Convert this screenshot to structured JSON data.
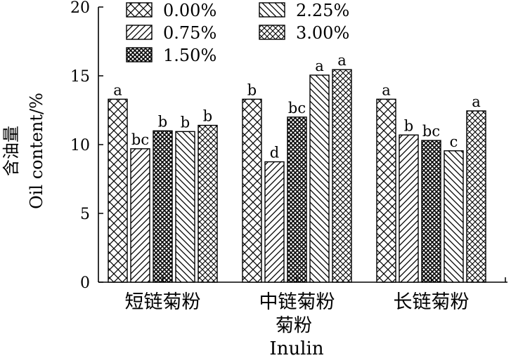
{
  "chart_data": {
    "type": "bar",
    "categories": [
      "短链菊粉",
      "中链菊粉",
      "长链菊粉"
    ],
    "xlabel_cn": "菊粉",
    "xlabel_en": "Inulin",
    "ylabel_cn": "含油量",
    "ylabel_en": "Oil content/%",
    "ylim": [
      0,
      20
    ],
    "yticks": [
      "0",
      "5",
      "10",
      "15",
      "20"
    ],
    "legend_position": "top-left",
    "series": [
      {
        "name": "0.00%",
        "pattern": "cross-hatch",
        "values": [
          13.3,
          13.3,
          13.3
        ],
        "letters": [
          "a",
          "b",
          "a"
        ]
      },
      {
        "name": "0.75%",
        "pattern": "diagonal-forward",
        "values": [
          9.7,
          8.75,
          10.7
        ],
        "letters": [
          "bc",
          "d",
          "b"
        ]
      },
      {
        "name": "1.50%",
        "pattern": "dense-cross",
        "values": [
          11.0,
          12.0,
          10.3
        ],
        "letters": [
          "b",
          "bc",
          "bc"
        ]
      },
      {
        "name": "2.25%",
        "pattern": "diagonal-back",
        "values": [
          10.95,
          15.05,
          9.55
        ],
        "letters": [
          "b",
          "a",
          "c"
        ]
      },
      {
        "name": "3.00%",
        "pattern": "fine-cross",
        "values": [
          11.4,
          15.45,
          12.45
        ],
        "letters": [
          "b",
          "a",
          "a"
        ]
      }
    ]
  }
}
